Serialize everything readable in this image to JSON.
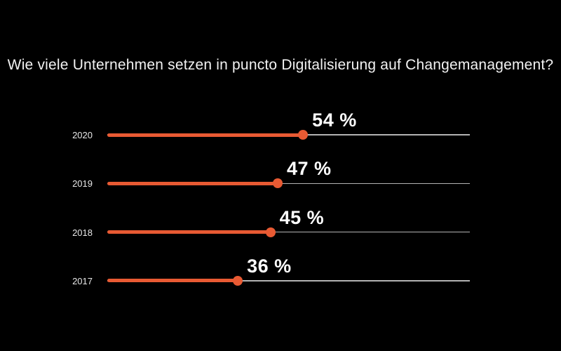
{
  "chart_data": {
    "type": "bar",
    "subtype": "horizontal-lollipop",
    "title": "Wie viele Unternehmen setzen in puncto Digitalisierung auf Changemanagement?",
    "categories": [
      "2020",
      "2019",
      "2018",
      "2017"
    ],
    "values": [
      54,
      47,
      45,
      36
    ],
    "value_labels": [
      "54 %",
      "47 %",
      "45 %",
      "36 %"
    ],
    "xlabel": "",
    "ylabel": "",
    "xlim": [
      0,
      100
    ],
    "grid": false,
    "legend": false,
    "orientation": "horizontal",
    "colors": {
      "bar": "#e85a33",
      "track": "#b3b3b3",
      "text": "#f2f2f2",
      "value_text": "#ffffff",
      "background": "#000000"
    }
  }
}
